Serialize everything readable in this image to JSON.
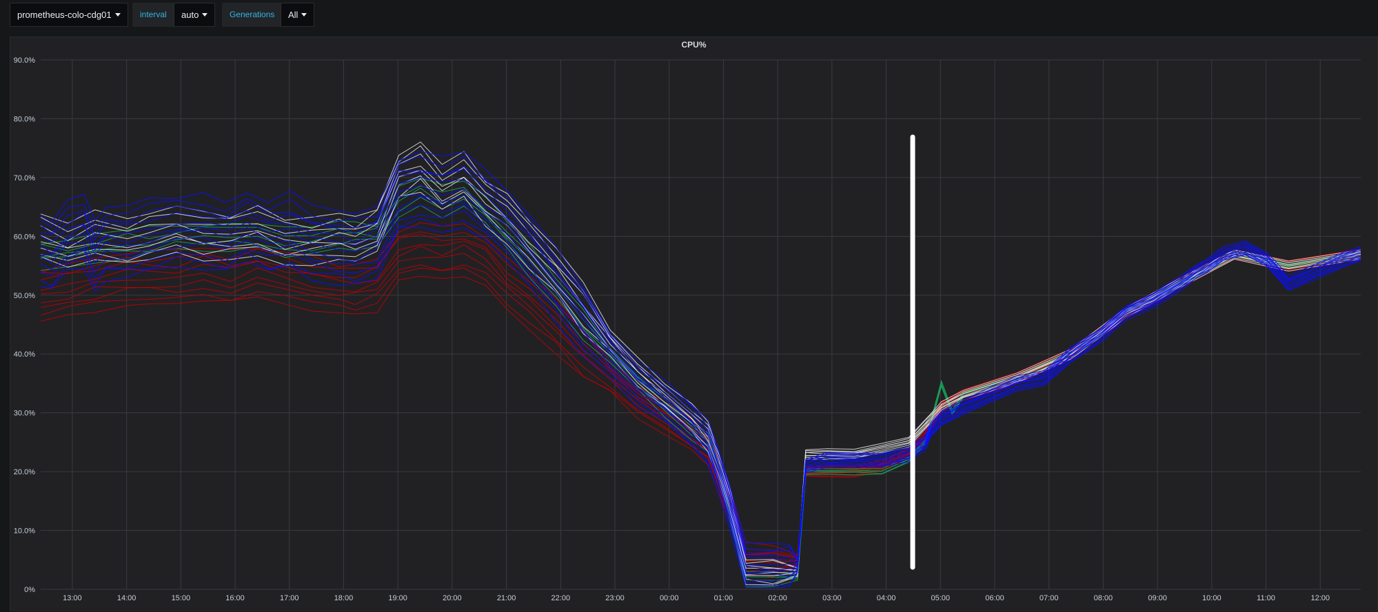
{
  "toolbar": {
    "datasource": {
      "value": "prometheus-colo-cdg01",
      "icon": "caret-down-icon"
    },
    "interval": {
      "label": "interval",
      "value": "auto",
      "icon": "caret-down-icon"
    },
    "generations": {
      "label": "Generations",
      "value": "All",
      "icon": "caret-down-icon"
    }
  },
  "chart_data": {
    "type": "line",
    "title": "CPU%",
    "xlabel": "",
    "ylabel": "",
    "ylim": [
      0,
      90
    ],
    "y_ticks": [
      "0%",
      "10.0%",
      "20.0%",
      "30.0%",
      "40.0%",
      "50.0%",
      "60.0%",
      "70.0%",
      "80.0%",
      "90.0%"
    ],
    "x_ticks": [
      "13:00",
      "14:00",
      "15:00",
      "16:00",
      "17:00",
      "18:00",
      "19:00",
      "20:00",
      "21:00",
      "22:00",
      "23:00",
      "00:00",
      "01:00",
      "02:00",
      "03:00",
      "04:00",
      "05:00",
      "06:00",
      "07:00",
      "08:00",
      "09:00",
      "10:00",
      "11:00",
      "12:00"
    ],
    "grid": true,
    "legend": "none",
    "x_unit": "hours from 12:25 (day 1) to 12:45 (day 2)",
    "series": [
      {
        "group": "blue",
        "color": "#0a10ff",
        "x": [
          0,
          0.2,
          0.5,
          0.8,
          1.0,
          1.2,
          1.6,
          2.0,
          2.5,
          3.0,
          3.4,
          3.8,
          4.2,
          4.6,
          5.0,
          5.5,
          5.8,
          6.2,
          6.6,
          7.0,
          7.4,
          7.8,
          8.2,
          8.6,
          9.0,
          9.5,
          10.0,
          10.5,
          11.0,
          11.5,
          12.0,
          12.3,
          12.5,
          12.7,
          13.0,
          13.5,
          13.8,
          13.95,
          14.1,
          14.5,
          15.0,
          15.5,
          16.0,
          16.3,
          16.4,
          16.6,
          17.0,
          17.5,
          18.0,
          18.5,
          19.0,
          19.5,
          20.0,
          20.5,
          21.0,
          21.3,
          21.5,
          21.8,
          22.2,
          22.6,
          23.0,
          23.5,
          24.0,
          24.33
        ],
        "values": [
          58,
          57,
          60,
          61,
          57,
          59,
          59,
          60,
          61,
          61,
          60,
          62,
          60,
          61,
          59,
          58,
          58,
          59,
          67,
          68,
          67,
          68,
          65,
          62,
          58,
          52,
          46,
          40,
          35,
          32,
          28,
          25,
          20,
          14,
          4,
          4,
          4,
          4,
          21,
          22,
          22,
          22,
          23,
          25,
          27,
          29,
          31,
          33,
          35,
          36,
          40,
          43,
          47,
          49,
          52,
          54,
          55,
          57,
          58,
          56,
          52,
          54,
          56,
          57
        ]
      },
      {
        "group": "white",
        "color": "#e0e0e0",
        "x": [
          0,
          0.5,
          1.0,
          1.6,
          2.0,
          2.5,
          3.0,
          3.5,
          4.0,
          4.5,
          5.0,
          5.5,
          5.8,
          6.2,
          6.6,
          7.0,
          7.4,
          7.8,
          8.2,
          8.6,
          9.0,
          9.5,
          10.0,
          10.5,
          11.0,
          11.5,
          12.0,
          12.3,
          12.5,
          12.7,
          13.0,
          13.5,
          13.95,
          14.1,
          14.5,
          15.0,
          15.5,
          16.0,
          16.3,
          16.4,
          16.6,
          17.0,
          18.0,
          19.0,
          20.0,
          21.0,
          22.0,
          23.0,
          24.33
        ],
        "values": [
          60,
          58,
          60,
          59,
          60,
          61,
          60,
          60,
          61,
          59,
          59,
          60,
          59,
          61,
          70,
          72,
          68,
          70,
          66,
          63,
          59,
          54,
          48,
          42,
          37,
          33,
          29,
          26,
          21,
          15,
          3,
          3,
          3,
          23,
          23,
          23,
          24,
          25,
          28,
          29,
          31,
          33,
          36,
          40,
          47,
          52,
          57,
          55,
          57
        ]
      },
      {
        "group": "red",
        "color": "#c00000",
        "x": [
          0,
          0.5,
          1.0,
          1.6,
          2.0,
          2.5,
          3.0,
          3.5,
          4.0,
          4.5,
          5.0,
          5.5,
          5.8,
          6.2,
          6.6,
          7.0,
          7.4,
          7.8,
          8.2,
          8.6,
          9.0,
          9.5,
          10.0,
          10.5,
          11.0,
          11.5,
          12.0,
          12.3,
          12.5,
          12.7,
          13.0,
          13.5,
          13.95,
          14.1,
          14.5,
          15.0,
          15.5,
          16.0,
          16.3,
          16.4,
          16.6,
          17.0,
          18.0,
          19.0,
          20.0,
          21.0,
          22.0,
          23.0,
          24.33
        ],
        "values": [
          50,
          51,
          52,
          53,
          53,
          53,
          54,
          53,
          54,
          53,
          52,
          51,
          51,
          52,
          57,
          58,
          57,
          58,
          56,
          52,
          49,
          45,
          40,
          36,
          32,
          29,
          26,
          24,
          19,
          14,
          5,
          5,
          5,
          20,
          20,
          20,
          21,
          23,
          26,
          28,
          31,
          33,
          36,
          40,
          47,
          52,
          57,
          55,
          57
        ]
      },
      {
        "group": "green",
        "color": "#1aa05a",
        "x": [
          0,
          0.5,
          1.0,
          1.6,
          2.0,
          2.5,
          3.0,
          3.5,
          4.0,
          4.5,
          5.0,
          5.5,
          5.8,
          6.2,
          6.6,
          7.0,
          7.4,
          7.8,
          8.2,
          8.6,
          9.0,
          9.5,
          10.0,
          10.5,
          11.0,
          11.5,
          12.0,
          12.3,
          12.5,
          12.7,
          13.0,
          13.5,
          13.95,
          14.1,
          14.5,
          15.0,
          15.5,
          16.0,
          16.3,
          16.4,
          16.6,
          16.8,
          17.0,
          18.0,
          19.0,
          20.0,
          21.0,
          22.0,
          23.0,
          24.33
        ],
        "values": [
          57,
          57,
          58,
          59,
          59,
          60,
          60,
          60,
          60,
          59,
          59,
          60,
          60,
          60,
          66,
          68,
          66,
          67,
          64,
          60,
          56,
          51,
          45,
          40,
          35,
          31,
          27,
          25,
          20,
          13,
          2,
          2,
          2,
          20,
          20,
          20,
          20,
          22,
          25,
          28,
          35,
          30,
          33,
          36,
          40,
          47,
          52,
          57,
          55,
          57
        ]
      }
    ]
  }
}
